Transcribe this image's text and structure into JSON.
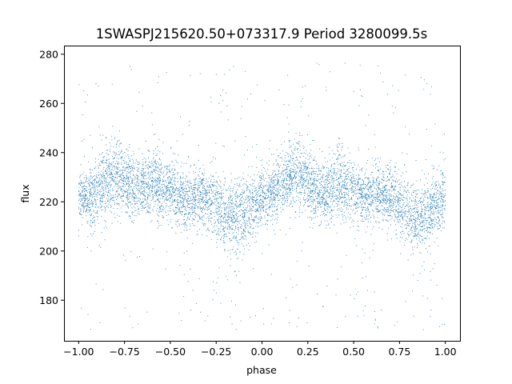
{
  "chart_data": {
    "type": "scatter",
    "title": "1SWASPJ215620.50+073317.9 Period 3280099.5s",
    "xlabel": "phase",
    "ylabel": "flux",
    "xlim": [
      -1.08,
      1.08
    ],
    "ylim": [
      163.5,
      283.5
    ],
    "x_ticks": [
      -1.0,
      -0.75,
      -0.5,
      -0.25,
      0.0,
      0.25,
      0.5,
      0.75,
      1.0
    ],
    "x_tick_labels": [
      "−1.00",
      "−0.75",
      "−0.50",
      "−0.25",
      "0.00",
      "0.25",
      "0.50",
      "0.75",
      "1.00"
    ],
    "y_ticks": [
      180,
      200,
      220,
      240,
      260,
      280
    ],
    "y_tick_labels": [
      "180",
      "200",
      "220",
      "240",
      "260",
      "280"
    ],
    "grid": false,
    "legend": "none",
    "marker_color": "#1f77b4",
    "series": [
      {
        "phase": [
          -1.0,
          -0.95,
          -0.9,
          -0.85,
          -0.8,
          -0.75,
          -0.7,
          -0.65,
          -0.6,
          -0.55,
          -0.5,
          -0.45,
          -0.4,
          -0.35,
          -0.3,
          -0.25,
          -0.2,
          -0.15,
          -0.1,
          -0.05,
          0.0,
          0.05,
          0.1,
          0.15,
          0.2,
          0.25,
          0.3,
          0.35,
          0.4,
          0.45,
          0.5,
          0.55,
          0.6,
          0.65,
          0.7,
          0.75,
          0.8,
          0.85,
          0.9,
          0.95,
          1.0
        ],
        "flux_mean": [
          223,
          221,
          224,
          228,
          231,
          229,
          225,
          226,
          228,
          226,
          224,
          222,
          221,
          222,
          222,
          219,
          215,
          213,
          215,
          219,
          222,
          223,
          227,
          231,
          231,
          228,
          224,
          224,
          227,
          227,
          224,
          223,
          223,
          223,
          222,
          219,
          215,
          213,
          216,
          219,
          222
        ],
        "flux_spread": [
          6,
          6,
          7,
          7,
          7,
          7,
          6,
          6,
          7,
          7,
          6,
          6,
          6,
          6,
          6,
          7,
          7,
          7,
          7,
          6,
          6,
          6,
          7,
          7,
          7,
          7,
          6,
          6,
          7,
          7,
          6,
          6,
          6,
          6,
          6,
          7,
          7,
          7,
          7,
          6,
          6
        ],
        "flux_min": 168,
        "flux_max": 277
      }
    ]
  }
}
